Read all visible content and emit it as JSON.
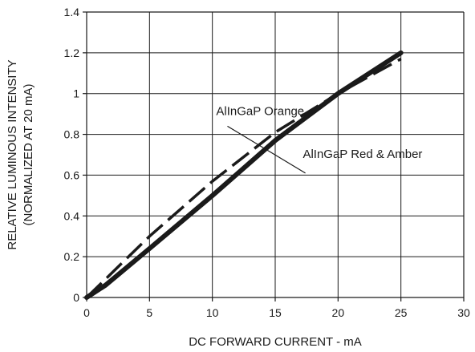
{
  "chart_data": {
    "type": "line",
    "title": "",
    "xlabel": "DC FORWARD CURRENT - mA",
    "ylabel": [
      "RELATIVE LUMINOUS INTENSITY",
      "(NORMALIZED AT 20 mA)"
    ],
    "xlim": [
      0,
      30
    ],
    "ylim": [
      0,
      1.4
    ],
    "x_ticks": [
      "0",
      "5",
      "10",
      "15",
      "20",
      "25",
      "30"
    ],
    "y_ticks": [
      "0",
      "0.2",
      "0.4",
      "0.6",
      "0.8",
      "1",
      "1.2",
      "1.4"
    ],
    "grid": true,
    "series": [
      {
        "name": "AlInGaP Orange",
        "style": "dashed",
        "x": [
          0,
          1.5,
          5,
          10,
          15,
          20,
          25
        ],
        "y": [
          0,
          0.09,
          0.3,
          0.57,
          0.81,
          1.0,
          1.17
        ]
      },
      {
        "name": "AlInGaP Red & Amber",
        "style": "solid",
        "x": [
          0,
          1.5,
          5,
          10,
          15,
          20,
          25
        ],
        "y": [
          0,
          0.06,
          0.24,
          0.5,
          0.77,
          1.0,
          1.2
        ]
      }
    ],
    "annotations": [
      {
        "text": "AlInGaP Orange",
        "x": 10.3,
        "y": 0.895
      },
      {
        "text": "AlInGaP Red & Amber",
        "x": 17.2,
        "y": 0.685
      }
    ],
    "line_color": "#1a1a1a"
  }
}
